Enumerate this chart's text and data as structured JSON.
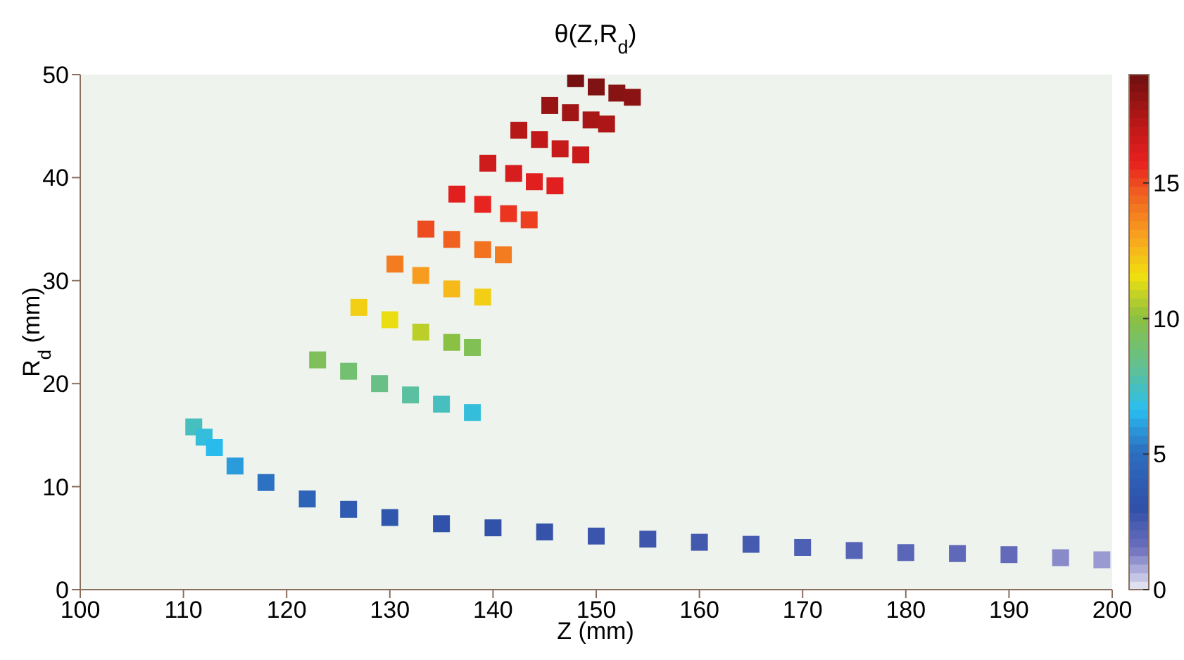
{
  "chart_data": {
    "type": "scatter",
    "title": "θ(Z,R$_{d}$)",
    "xlabel": "Z (mm)",
    "ylabel": "R$_{d}$ (mm)",
    "x": [
      111,
      112,
      113,
      115,
      118,
      122,
      126,
      130,
      135,
      140,
      145,
      150,
      155,
      160,
      165,
      170,
      175,
      180,
      185,
      190,
      195,
      199,
      123,
      126,
      129,
      132,
      135,
      138,
      127,
      130,
      133,
      136,
      138,
      130.5,
      133,
      136,
      139,
      133.5,
      136,
      139,
      141,
      136.5,
      139,
      141.5,
      143.5,
      139.5,
      142,
      144,
      146,
      142.5,
      144.5,
      146.5,
      148.5,
      145.5,
      147.5,
      149.5,
      151,
      148,
      150,
      152,
      153.5
    ],
    "series": [
      {
        "values": [
          15.8,
          14.8,
          13.8,
          12,
          10.4,
          8.8,
          7.8,
          7,
          6.4,
          6,
          5.6,
          5.2,
          4.9,
          4.6,
          4.4,
          4.1,
          3.8,
          3.6,
          3.5,
          3.4,
          3.1,
          2.9,
          22.3,
          21.2,
          20,
          18.9,
          18,
          17.2,
          27.4,
          26.2,
          25,
          24,
          23.5,
          31.6,
          30.5,
          29.2,
          28.4,
          35,
          34,
          33,
          32.5,
          38.4,
          37.4,
          36.5,
          35.9,
          41.4,
          40.4,
          39.6,
          39.2,
          44.6,
          43.7,
          42.8,
          42.2,
          47,
          46.3,
          45.6,
          45.2,
          49.6,
          48.8,
          48.2,
          47.8
        ],
        "cvalues": [
          7.5,
          7,
          6.6,
          6,
          5.2,
          4.4,
          3.8,
          3.5,
          3.2,
          3,
          2.9,
          2.8,
          2.7,
          2.6,
          2.5,
          2.3,
          2.1,
          2,
          1.9,
          1.8,
          1.2,
          1,
          9.5,
          9,
          8.5,
          8,
          7.5,
          7,
          12,
          11.5,
          10.8,
          10,
          9.6,
          14,
          13.2,
          12.5,
          12,
          15,
          14.6,
          14.2,
          14,
          16,
          15.7,
          15.4,
          15.2,
          16.6,
          16.3,
          16,
          16,
          17.3,
          17,
          16.8,
          16.7,
          18,
          17.8,
          17.6,
          17.5,
          18.8,
          18.6,
          18.4,
          18.3
        ]
      }
    ],
    "xlim": [
      100,
      200
    ],
    "xticks": [
      100,
      110,
      120,
      130,
      140,
      150,
      160,
      170,
      180,
      190,
      200
    ],
    "ylim": [
      0,
      50
    ],
    "yticks": [
      0,
      10,
      20,
      30,
      40,
      50
    ],
    "clim": [
      0,
      19
    ],
    "cticks": [
      0,
      5,
      10,
      15
    ],
    "marker": "square",
    "grid": false,
    "legend": false
  }
}
